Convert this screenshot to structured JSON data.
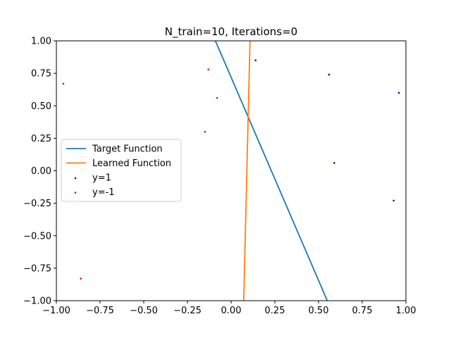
{
  "chart_data": {
    "type": "scatter",
    "title": "N_train=10, Iterations=0",
    "xlabel": "",
    "ylabel": "",
    "xlim": [
      -1.0,
      1.0
    ],
    "ylim": [
      -1.0,
      1.0
    ],
    "xticks": [
      -1.0,
      -0.75,
      -0.5,
      -0.25,
      0.0,
      0.25,
      0.5,
      0.75,
      1.0
    ],
    "yticks": [
      -1.0,
      -0.75,
      -0.5,
      -0.25,
      0.0,
      0.25,
      0.5,
      0.75,
      1.0
    ],
    "xtick_labels": [
      "−1.00",
      "−0.75",
      "−0.50",
      "−0.25",
      "0.00",
      "0.25",
      "0.50",
      "0.75",
      "1.00"
    ],
    "ytick_labels": [
      "−1.00",
      "−0.75",
      "−0.50",
      "−0.25",
      "0.00",
      "0.25",
      "0.50",
      "0.75",
      "1.00"
    ],
    "grid": false,
    "legend_position": "center-left",
    "lines": [
      {
        "name": "Target Function",
        "color": "#1f77b4",
        "x": [
          -0.09,
          0.55
        ],
        "y": [
          1.0,
          -1.0
        ]
      },
      {
        "name": "Learned Function",
        "color": "#ff7f0e",
        "x": [
          0.108,
          0.072
        ],
        "y": [
          1.0,
          -1.0
        ]
      }
    ],
    "series": [
      {
        "name": "y=1",
        "color": "#0000cc",
        "x": [
          0.14,
          0.56,
          0.96,
          0.59,
          0.93
        ],
        "y": [
          0.85,
          0.74,
          0.6,
          0.06,
          -0.23
        ]
      },
      {
        "name": "y=-1",
        "color": "#ee0000",
        "x": [
          -0.96,
          -0.13,
          -0.08,
          -0.15,
          -0.86
        ],
        "y": [
          0.67,
          0.78,
          0.56,
          0.3,
          -0.83
        ]
      }
    ]
  }
}
